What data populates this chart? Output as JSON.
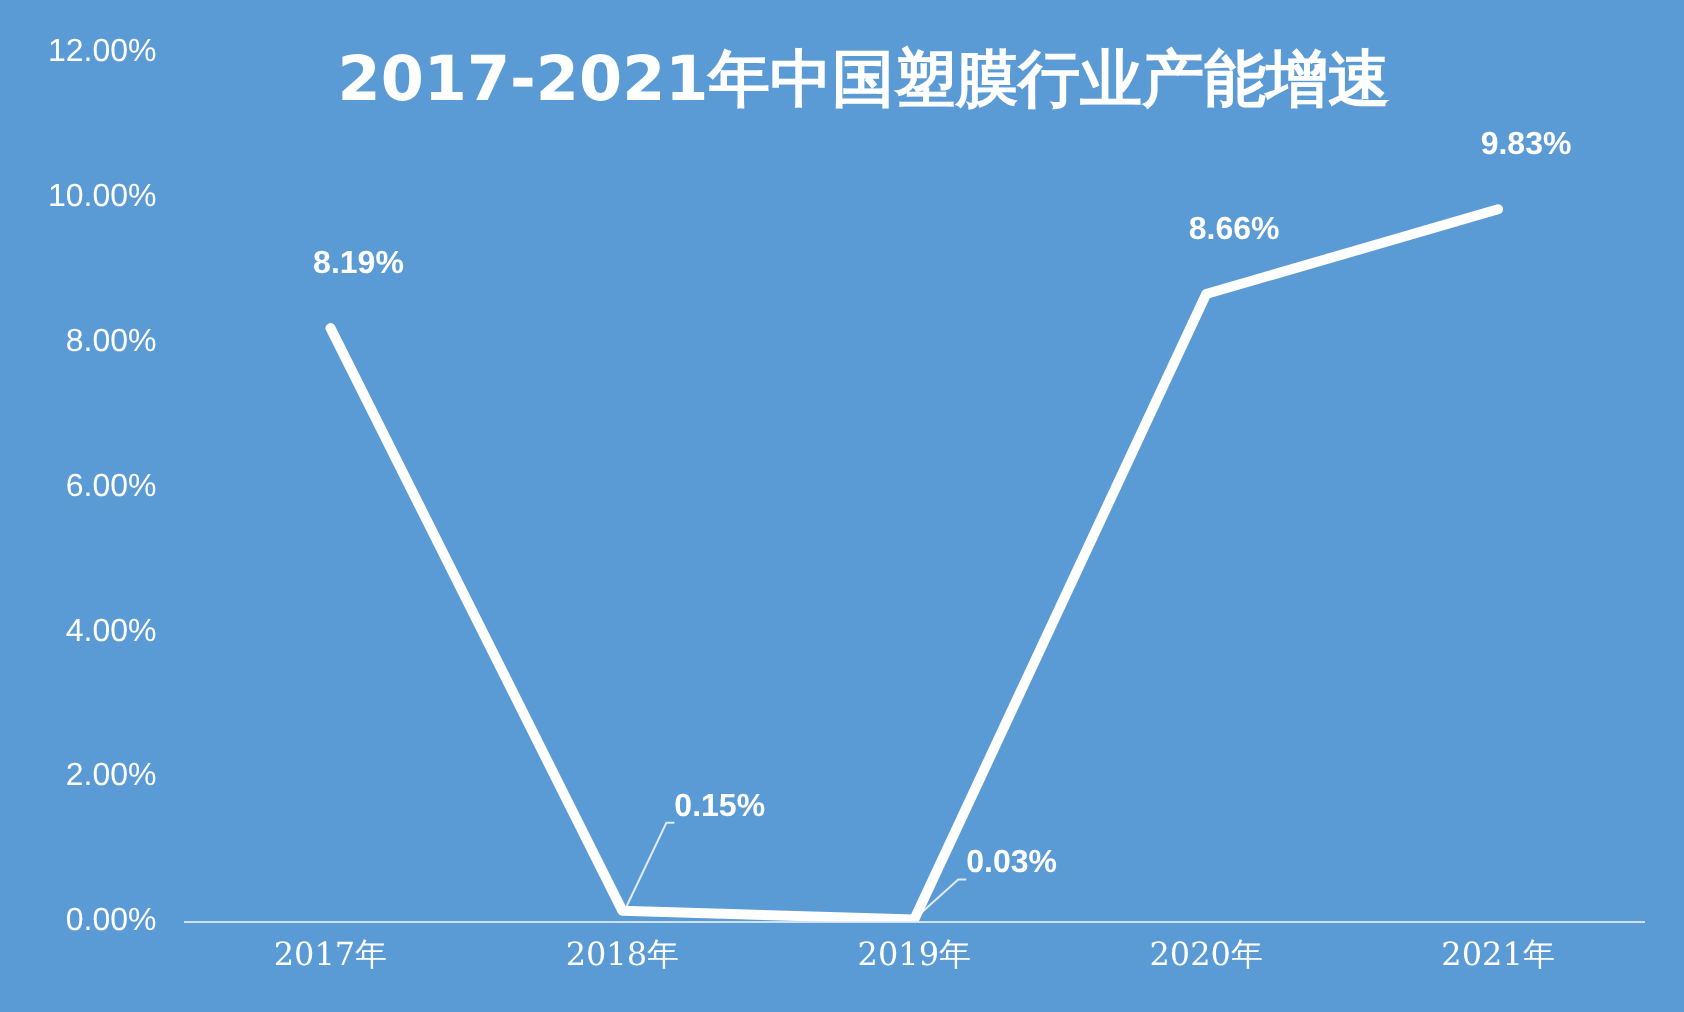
{
  "chart_data": {
    "type": "line",
    "title": "2017-2021年中国塑膜行业产能增速",
    "categories": [
      "2017年",
      "2018年",
      "2019年",
      "2020年",
      "2021年"
    ],
    "series": [
      {
        "color": "#ffffff",
        "values": [
          8.19,
          0.15,
          0.03,
          8.66,
          9.83
        ]
      }
    ],
    "ylim": [
      0,
      12
    ],
    "yticks": [
      {
        "value": 0,
        "label": "0.00%"
      },
      {
        "value": 2,
        "label": "2.00%"
      },
      {
        "value": 4,
        "label": "4.00%"
      },
      {
        "value": 6,
        "label": "6.00%"
      },
      {
        "value": 8,
        "label": "8.00%"
      },
      {
        "value": 10,
        "label": "10.00%"
      },
      {
        "value": 12,
        "label": "12.00%"
      }
    ],
    "value_labels": [
      [
        "8.19%",
        "0.15%",
        "0.03%",
        "8.66%",
        "9.83%"
      ]
    ],
    "grid": false,
    "legend": false,
    "marker": "none",
    "line_style": "solid"
  }
}
